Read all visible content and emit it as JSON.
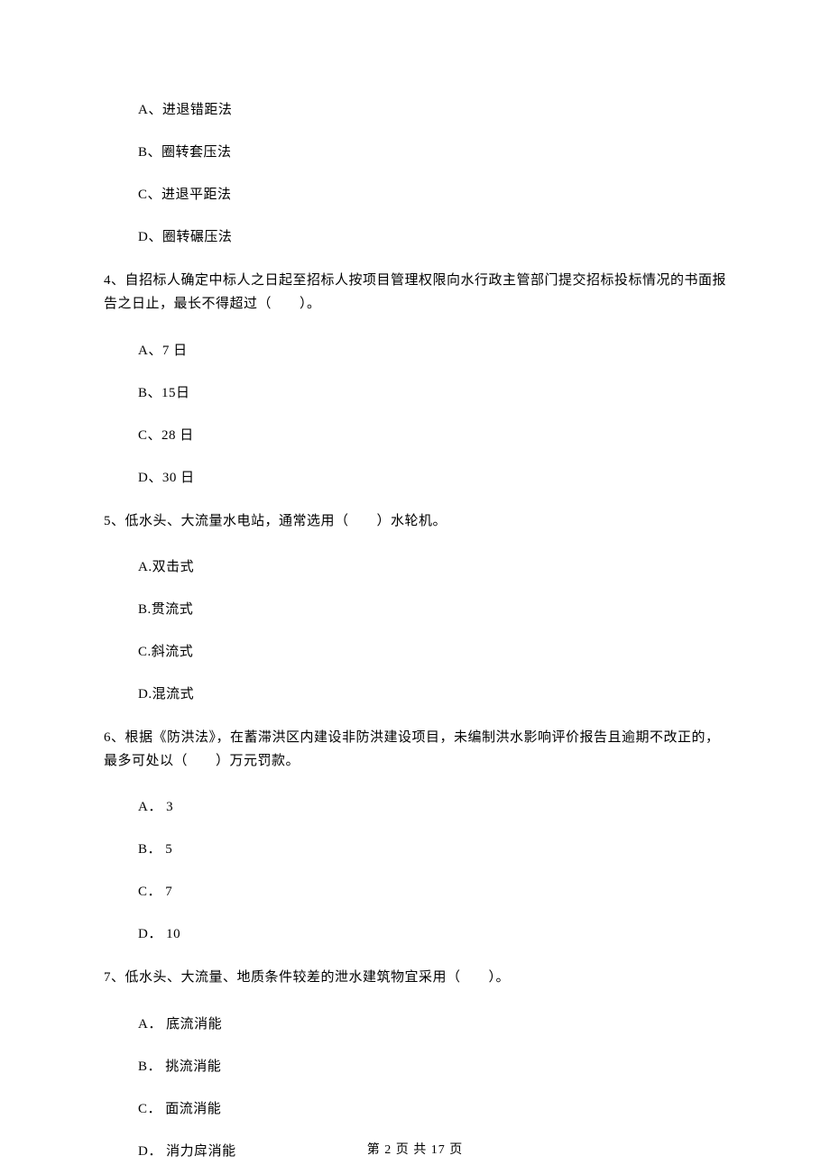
{
  "q3": {
    "options": {
      "a": "A、进退错距法",
      "b": "B、圈转套压法",
      "c": "C、进退平距法",
      "d": "D、圈转碾压法"
    }
  },
  "q4": {
    "text": "4、自招标人确定中标人之日起至招标人按项目管理权限向水行政主管部门提交招标投标情况的书面报告之日止，最长不得超过（　　）。",
    "options": {
      "a": "A、7 日",
      "b": "B、15日",
      "c": "C、28 日",
      "d": "D、30 日"
    }
  },
  "q5": {
    "text": "5、低水头、大流量水电站，通常选用（　　）水轮机。",
    "options": {
      "a": "A.双击式",
      "b": "B.贯流式",
      "c": "C.斜流式",
      "d": "D.混流式"
    }
  },
  "q6": {
    "text": "6、根据《防洪法》，在蓄滞洪区内建设非防洪建设项目，未编制洪水影响评价报告且逾期不改正的，最多可处以（　　）万元罚款。",
    "options": {
      "a": "A． 3",
      "b": "B． 5",
      "c": "C． 7",
      "d": "D． 10"
    }
  },
  "q7": {
    "text": "7、低水头、大流量、地质条件较差的泄水建筑物宜采用（　　）。",
    "options": {
      "a": "A． 底流消能",
      "b": "B． 挑流消能",
      "c": "C． 面流消能",
      "d": "D． 消力戽消能"
    }
  },
  "footer": "第 2 页 共 17 页"
}
